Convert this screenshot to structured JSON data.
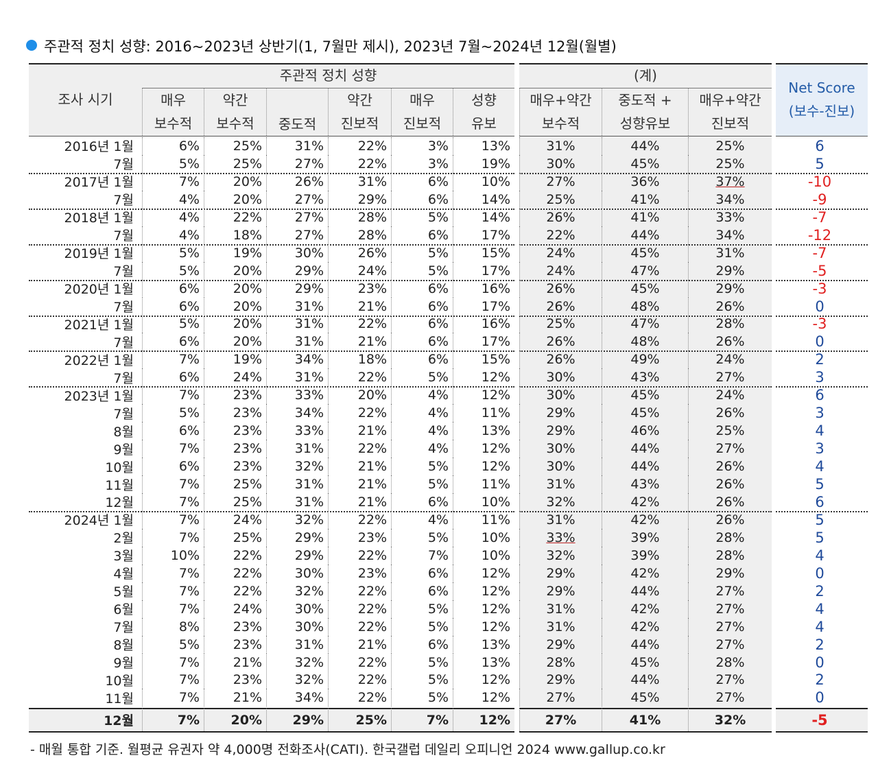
{
  "title": "주관적 정치 성향: 2016~2023년 상반기(1, 7월만 제시), 2023년 7월~2024년 12월(월별)",
  "table": {
    "groups": [
      "주관적 정치 성향",
      "(계)"
    ],
    "period_header": "조사 시기",
    "columns": [
      [
        "매우",
        "보수적"
      ],
      [
        "약간",
        "보수적"
      ],
      [
        "중도적"
      ],
      [
        "약간",
        "진보적"
      ],
      [
        "매우",
        "진보적"
      ],
      [
        "성향",
        "유보"
      ],
      [
        "매우+약간",
        "보수적"
      ],
      [
        "중도적 +",
        "성향유보"
      ],
      [
        "매우+약간",
        "진보적"
      ]
    ],
    "net_header": [
      "Net Score",
      "(보수-진보)"
    ],
    "rows": [
      [
        "2016년 1월",
        "6%",
        "25%",
        "31%",
        "22%",
        "3%",
        "13%",
        "31%",
        "44%",
        "25%",
        6
      ],
      [
        "7월",
        "5%",
        "25%",
        "27%",
        "22%",
        "3%",
        "19%",
        "30%",
        "45%",
        "25%",
        5
      ],
      [
        "2017년 1월",
        "7%",
        "20%",
        "26%",
        "31%",
        "6%",
        "10%",
        "27%",
        "36%",
        "37%",
        -10
      ],
      [
        "7월",
        "4%",
        "20%",
        "27%",
        "29%",
        "6%",
        "14%",
        "25%",
        "41%",
        "34%",
        -9
      ],
      [
        "2018년 1월",
        "4%",
        "22%",
        "27%",
        "28%",
        "5%",
        "14%",
        "26%",
        "41%",
        "33%",
        -7
      ],
      [
        "7월",
        "4%",
        "18%",
        "27%",
        "28%",
        "6%",
        "17%",
        "22%",
        "44%",
        "34%",
        -12
      ],
      [
        "2019년 1월",
        "5%",
        "19%",
        "30%",
        "26%",
        "5%",
        "15%",
        "24%",
        "45%",
        "31%",
        -7
      ],
      [
        "7월",
        "5%",
        "20%",
        "29%",
        "24%",
        "5%",
        "17%",
        "24%",
        "47%",
        "29%",
        -5
      ],
      [
        "2020년 1월",
        "6%",
        "20%",
        "29%",
        "23%",
        "6%",
        "16%",
        "26%",
        "45%",
        "29%",
        -3
      ],
      [
        "7월",
        "6%",
        "20%",
        "31%",
        "21%",
        "6%",
        "17%",
        "26%",
        "48%",
        "26%",
        0
      ],
      [
        "2021년 1월",
        "5%",
        "20%",
        "31%",
        "22%",
        "6%",
        "16%",
        "25%",
        "47%",
        "28%",
        -3
      ],
      [
        "7월",
        "6%",
        "20%",
        "31%",
        "21%",
        "6%",
        "17%",
        "26%",
        "48%",
        "26%",
        0
      ],
      [
        "2022년 1월",
        "7%",
        "19%",
        "34%",
        "18%",
        "6%",
        "15%",
        "26%",
        "49%",
        "24%",
        2
      ],
      [
        "7월",
        "6%",
        "24%",
        "31%",
        "22%",
        "5%",
        "12%",
        "30%",
        "43%",
        "27%",
        3
      ],
      [
        "2023년 1월",
        "7%",
        "23%",
        "33%",
        "20%",
        "4%",
        "12%",
        "30%",
        "45%",
        "24%",
        6
      ],
      [
        "7월",
        "5%",
        "23%",
        "34%",
        "22%",
        "4%",
        "11%",
        "29%",
        "45%",
        "26%",
        3
      ],
      [
        "8월",
        "6%",
        "23%",
        "33%",
        "21%",
        "4%",
        "13%",
        "29%",
        "46%",
        "25%",
        4
      ],
      [
        "9월",
        "7%",
        "23%",
        "31%",
        "22%",
        "4%",
        "12%",
        "30%",
        "44%",
        "27%",
        3
      ],
      [
        "10월",
        "6%",
        "23%",
        "32%",
        "21%",
        "5%",
        "12%",
        "30%",
        "44%",
        "26%",
        4
      ],
      [
        "11월",
        "7%",
        "25%",
        "31%",
        "21%",
        "5%",
        "11%",
        "31%",
        "43%",
        "26%",
        5
      ],
      [
        "12월",
        "7%",
        "25%",
        "31%",
        "21%",
        "6%",
        "10%",
        "32%",
        "42%",
        "26%",
        6
      ],
      [
        "2024년 1월",
        "7%",
        "24%",
        "32%",
        "22%",
        "4%",
        "11%",
        "31%",
        "42%",
        "26%",
        5
      ],
      [
        "2월",
        "7%",
        "25%",
        "29%",
        "23%",
        "5%",
        "10%",
        "33%",
        "39%",
        "28%",
        5
      ],
      [
        "3월",
        "10%",
        "22%",
        "29%",
        "22%",
        "7%",
        "10%",
        "32%",
        "39%",
        "28%",
        4
      ],
      [
        "4월",
        "7%",
        "22%",
        "30%",
        "23%",
        "6%",
        "12%",
        "29%",
        "42%",
        "29%",
        0
      ],
      [
        "5월",
        "7%",
        "22%",
        "32%",
        "22%",
        "6%",
        "12%",
        "29%",
        "44%",
        "27%",
        2
      ],
      [
        "6월",
        "7%",
        "24%",
        "30%",
        "22%",
        "5%",
        "12%",
        "31%",
        "42%",
        "27%",
        4
      ],
      [
        "7월",
        "8%",
        "23%",
        "30%",
        "22%",
        "5%",
        "12%",
        "31%",
        "42%",
        "27%",
        4
      ],
      [
        "8월",
        "5%",
        "23%",
        "31%",
        "21%",
        "6%",
        "13%",
        "29%",
        "44%",
        "27%",
        2
      ],
      [
        "9월",
        "7%",
        "21%",
        "32%",
        "22%",
        "5%",
        "13%",
        "28%",
        "45%",
        "28%",
        0
      ],
      [
        "10월",
        "7%",
        "23%",
        "32%",
        "22%",
        "5%",
        "12%",
        "29%",
        "44%",
        "27%",
        2
      ],
      [
        "11월",
        "7%",
        "21%",
        "34%",
        "22%",
        "5%",
        "12%",
        "27%",
        "45%",
        "27%",
        0
      ],
      [
        "12월",
        "7%",
        "20%",
        "29%",
        "25%",
        "7%",
        "12%",
        "27%",
        "41%",
        "32%",
        -5
      ]
    ]
  },
  "footnote": "- 매월 통합 기준. 월평균 유권자 약 4,000명 전화조사(CATI). 한국갤럽 데일리 오피니언 2024 www.gallup.co.kr"
}
